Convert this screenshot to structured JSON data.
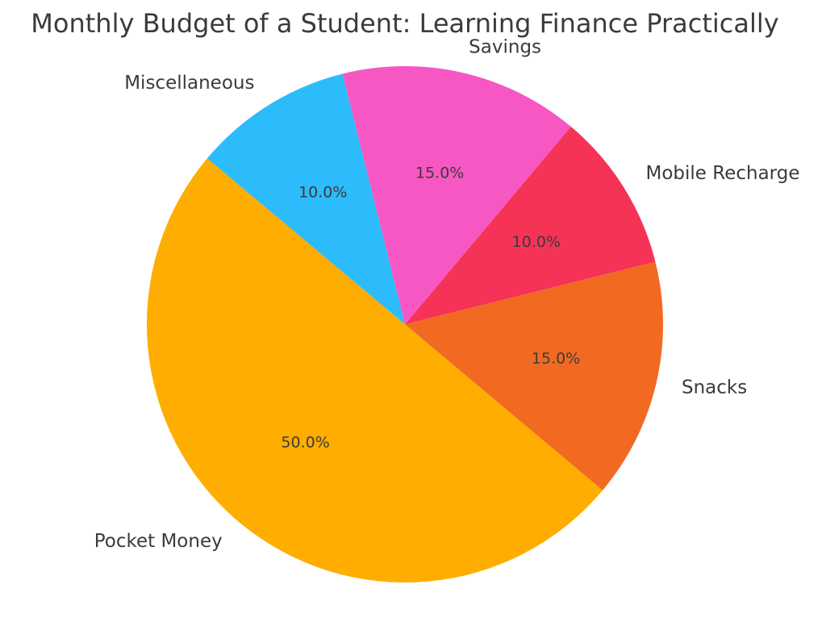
{
  "chart_data": {
    "type": "pie",
    "title": "Monthly Budget of a Student: Learning Finance Practically",
    "categories": [
      "Pocket Money",
      "Snacks",
      "Mobile Recharge",
      "Savings",
      "Miscellaneous"
    ],
    "values": [
      50.0,
      15.0,
      10.0,
      15.0,
      10.0
    ],
    "percent_labels": [
      "50.0%",
      "15.0%",
      "10.0%",
      "15.0%",
      "10.0%"
    ],
    "colors": [
      "#ffad00",
      "#f26a22",
      "#f53357",
      "#f757c3",
      "#2cbcfb"
    ],
    "start_angle_deg": 140,
    "direction": "counterclockwise",
    "legend": "none"
  }
}
